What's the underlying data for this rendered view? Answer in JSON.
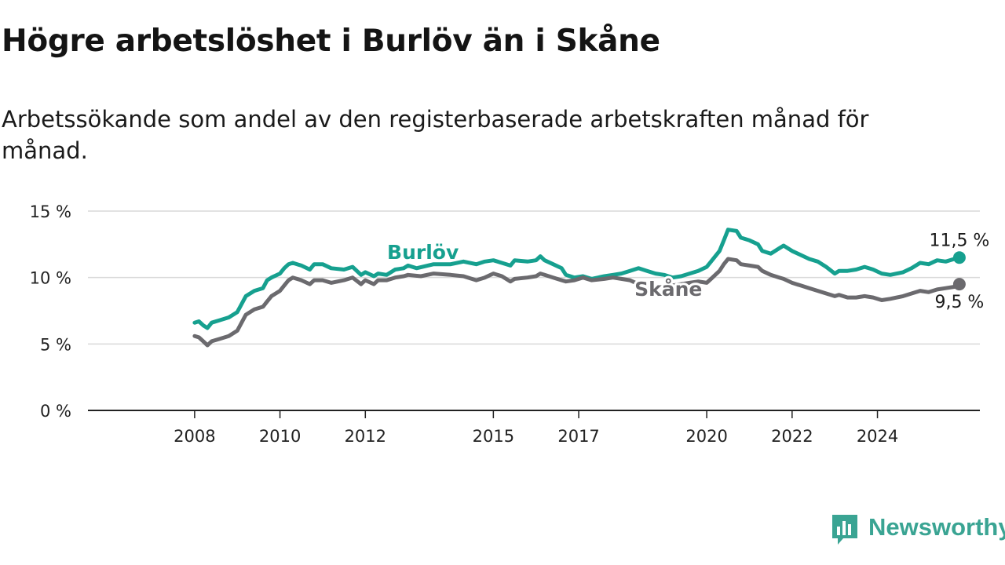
{
  "title": "Högre arbetslöshet i Burlöv än i Skåne",
  "subtitle": "Arbetssökande som andel av den registerbaserade arbetskraften månad för månad.",
  "brand": {
    "name": "Newsworthy"
  },
  "chart_data": {
    "type": "line",
    "title": "Högre arbetslöshet i Burlöv än i Skåne",
    "subtitle": "Arbetssökande som andel av den registerbaserade arbetskraften månad för månad.",
    "xlabel": "",
    "ylabel": "",
    "y_ticks": [
      {
        "value": 0,
        "label": "0 %"
      },
      {
        "value": 5,
        "label": "5 %"
      },
      {
        "value": 10,
        "label": "10 %"
      },
      {
        "value": 15,
        "label": "15 %"
      }
    ],
    "x_ticks": [
      {
        "value": 2008,
        "label": "2008"
      },
      {
        "value": 2010,
        "label": "2010"
      },
      {
        "value": 2012,
        "label": "2012"
      },
      {
        "value": 2015,
        "label": "2015"
      },
      {
        "value": 2017,
        "label": "2017"
      },
      {
        "value": 2020,
        "label": "2020"
      },
      {
        "value": 2022,
        "label": "2022"
      },
      {
        "value": 2024,
        "label": "2024"
      }
    ],
    "xlim": [
      2005.5,
      2026.4
    ],
    "ylim": [
      0,
      15
    ],
    "grid": "horizontal",
    "series": [
      {
        "name": "Burlöv",
        "color": "#16a08f",
        "end_label": "11,5 %",
        "label_at": [
          2013.35,
          12.0
        ],
        "points": [
          [
            2008.0,
            6.6
          ],
          [
            2008.1,
            6.7
          ],
          [
            2008.2,
            6.4
          ],
          [
            2008.3,
            6.2
          ],
          [
            2008.4,
            6.6
          ],
          [
            2008.6,
            6.8
          ],
          [
            2008.8,
            7.0
          ],
          [
            2009.0,
            7.4
          ],
          [
            2009.1,
            8.0
          ],
          [
            2009.2,
            8.6
          ],
          [
            2009.4,
            9.0
          ],
          [
            2009.6,
            9.2
          ],
          [
            2009.7,
            9.8
          ],
          [
            2009.8,
            10.0
          ],
          [
            2010.0,
            10.3
          ],
          [
            2010.1,
            10.7
          ],
          [
            2010.2,
            11.0
          ],
          [
            2010.3,
            11.1
          ],
          [
            2010.5,
            10.9
          ],
          [
            2010.7,
            10.6
          ],
          [
            2010.8,
            11.0
          ],
          [
            2011.0,
            11.0
          ],
          [
            2011.2,
            10.7
          ],
          [
            2011.5,
            10.6
          ],
          [
            2011.7,
            10.8
          ],
          [
            2011.9,
            10.2
          ],
          [
            2012.0,
            10.4
          ],
          [
            2012.2,
            10.1
          ],
          [
            2012.3,
            10.3
          ],
          [
            2012.5,
            10.2
          ],
          [
            2012.7,
            10.6
          ],
          [
            2012.9,
            10.7
          ],
          [
            2013.0,
            10.9
          ],
          [
            2013.2,
            10.7
          ],
          [
            2013.6,
            11.0
          ],
          [
            2014.0,
            11.0
          ],
          [
            2014.3,
            11.2
          ],
          [
            2014.6,
            11.0
          ],
          [
            2014.8,
            11.2
          ],
          [
            2015.0,
            11.3
          ],
          [
            2015.2,
            11.1
          ],
          [
            2015.4,
            10.9
          ],
          [
            2015.5,
            11.3
          ],
          [
            2015.8,
            11.2
          ],
          [
            2016.0,
            11.3
          ],
          [
            2016.1,
            11.6
          ],
          [
            2016.2,
            11.3
          ],
          [
            2016.4,
            11.0
          ],
          [
            2016.6,
            10.7
          ],
          [
            2016.7,
            10.2
          ],
          [
            2016.9,
            10.0
          ],
          [
            2017.1,
            10.1
          ],
          [
            2017.3,
            9.9
          ],
          [
            2017.6,
            10.1
          ],
          [
            2017.8,
            10.2
          ],
          [
            2018.0,
            10.3
          ],
          [
            2018.2,
            10.5
          ],
          [
            2018.4,
            10.7
          ],
          [
            2018.6,
            10.5
          ],
          [
            2018.8,
            10.3
          ],
          [
            2019.0,
            10.2
          ],
          [
            2019.2,
            10.0
          ],
          [
            2019.4,
            10.1
          ],
          [
            2019.6,
            10.3
          ],
          [
            2019.8,
            10.5
          ],
          [
            2020.0,
            10.8
          ],
          [
            2020.1,
            11.2
          ],
          [
            2020.3,
            12.0
          ],
          [
            2020.4,
            12.8
          ],
          [
            2020.5,
            13.6
          ],
          [
            2020.7,
            13.5
          ],
          [
            2020.8,
            13.0
          ],
          [
            2021.0,
            12.8
          ],
          [
            2021.2,
            12.5
          ],
          [
            2021.3,
            12.0
          ],
          [
            2021.5,
            11.8
          ],
          [
            2021.7,
            12.2
          ],
          [
            2021.8,
            12.4
          ],
          [
            2022.0,
            12.0
          ],
          [
            2022.2,
            11.7
          ],
          [
            2022.4,
            11.4
          ],
          [
            2022.6,
            11.2
          ],
          [
            2022.8,
            10.8
          ],
          [
            2023.0,
            10.3
          ],
          [
            2023.1,
            10.5
          ],
          [
            2023.3,
            10.5
          ],
          [
            2023.5,
            10.6
          ],
          [
            2023.7,
            10.8
          ],
          [
            2023.9,
            10.6
          ],
          [
            2024.1,
            10.3
          ],
          [
            2024.3,
            10.2
          ],
          [
            2024.6,
            10.4
          ],
          [
            2024.8,
            10.7
          ],
          [
            2025.0,
            11.1
          ],
          [
            2025.2,
            11.0
          ],
          [
            2025.4,
            11.3
          ],
          [
            2025.6,
            11.2
          ],
          [
            2025.8,
            11.4
          ],
          [
            2025.92,
            11.5
          ]
        ]
      },
      {
        "name": "Skåne",
        "color": "#6b6a6e",
        "end_label": "9,5 %",
        "label_at": [
          2019.1,
          9.2
        ],
        "points": [
          [
            2008.0,
            5.6
          ],
          [
            2008.1,
            5.5
          ],
          [
            2008.2,
            5.2
          ],
          [
            2008.3,
            4.9
          ],
          [
            2008.4,
            5.2
          ],
          [
            2008.6,
            5.4
          ],
          [
            2008.8,
            5.6
          ],
          [
            2009.0,
            6.0
          ],
          [
            2009.1,
            6.6
          ],
          [
            2009.2,
            7.2
          ],
          [
            2009.4,
            7.6
          ],
          [
            2009.6,
            7.8
          ],
          [
            2009.7,
            8.2
          ],
          [
            2009.8,
            8.6
          ],
          [
            2010.0,
            9.0
          ],
          [
            2010.1,
            9.4
          ],
          [
            2010.2,
            9.8
          ],
          [
            2010.3,
            10.0
          ],
          [
            2010.5,
            9.8
          ],
          [
            2010.7,
            9.5
          ],
          [
            2010.8,
            9.8
          ],
          [
            2011.0,
            9.8
          ],
          [
            2011.2,
            9.6
          ],
          [
            2011.5,
            9.8
          ],
          [
            2011.7,
            10.0
          ],
          [
            2011.9,
            9.5
          ],
          [
            2012.0,
            9.8
          ],
          [
            2012.2,
            9.5
          ],
          [
            2012.3,
            9.8
          ],
          [
            2012.5,
            9.8
          ],
          [
            2012.7,
            10.0
          ],
          [
            2012.9,
            10.1
          ],
          [
            2013.0,
            10.2
          ],
          [
            2013.3,
            10.1
          ],
          [
            2013.6,
            10.3
          ],
          [
            2014.0,
            10.2
          ],
          [
            2014.3,
            10.1
          ],
          [
            2014.6,
            9.8
          ],
          [
            2014.8,
            10.0
          ],
          [
            2015.0,
            10.3
          ],
          [
            2015.2,
            10.1
          ],
          [
            2015.4,
            9.7
          ],
          [
            2015.5,
            9.9
          ],
          [
            2015.8,
            10.0
          ],
          [
            2016.0,
            10.1
          ],
          [
            2016.1,
            10.3
          ],
          [
            2016.2,
            10.2
          ],
          [
            2016.4,
            10.0
          ],
          [
            2016.6,
            9.8
          ],
          [
            2016.7,
            9.7
          ],
          [
            2016.9,
            9.8
          ],
          [
            2017.1,
            10.0
          ],
          [
            2017.3,
            9.8
          ],
          [
            2017.6,
            9.9
          ],
          [
            2017.8,
            10.0
          ],
          [
            2018.0,
            9.9
          ],
          [
            2018.2,
            9.8
          ],
          [
            2018.4,
            9.5
          ],
          [
            2018.6,
            9.3
          ],
          [
            2018.8,
            9.2
          ],
          [
            2019.0,
            9.3
          ],
          [
            2019.2,
            9.4
          ],
          [
            2019.4,
            9.5
          ],
          [
            2019.6,
            9.6
          ],
          [
            2019.8,
            9.7
          ],
          [
            2020.0,
            9.6
          ],
          [
            2020.1,
            9.9
          ],
          [
            2020.3,
            10.5
          ],
          [
            2020.4,
            11.0
          ],
          [
            2020.5,
            11.4
          ],
          [
            2020.7,
            11.3
          ],
          [
            2020.8,
            11.0
          ],
          [
            2021.0,
            10.9
          ],
          [
            2021.2,
            10.8
          ],
          [
            2021.3,
            10.5
          ],
          [
            2021.5,
            10.2
          ],
          [
            2021.7,
            10.0
          ],
          [
            2021.8,
            9.9
          ],
          [
            2022.0,
            9.6
          ],
          [
            2022.2,
            9.4
          ],
          [
            2022.4,
            9.2
          ],
          [
            2022.6,
            9.0
          ],
          [
            2022.8,
            8.8
          ],
          [
            2023.0,
            8.6
          ],
          [
            2023.1,
            8.7
          ],
          [
            2023.3,
            8.5
          ],
          [
            2023.5,
            8.5
          ],
          [
            2023.7,
            8.6
          ],
          [
            2023.9,
            8.5
          ],
          [
            2024.1,
            8.3
          ],
          [
            2024.3,
            8.4
          ],
          [
            2024.6,
            8.6
          ],
          [
            2024.8,
            8.8
          ],
          [
            2025.0,
            9.0
          ],
          [
            2025.2,
            8.9
          ],
          [
            2025.4,
            9.1
          ],
          [
            2025.6,
            9.2
          ],
          [
            2025.8,
            9.3
          ],
          [
            2025.92,
            9.5
          ]
        ]
      }
    ]
  }
}
